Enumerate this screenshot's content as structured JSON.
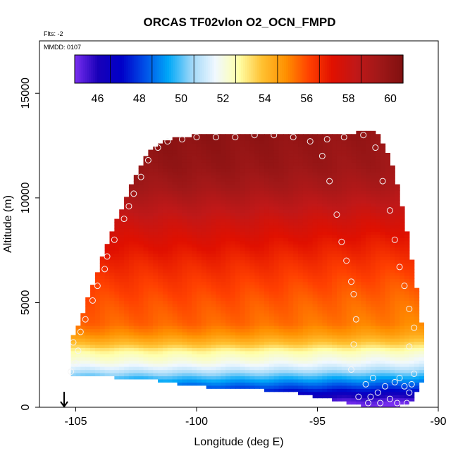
{
  "chart_data": {
    "type": "heatmap",
    "title": "ORCAS TF02vlon O2_OCN_FMPD",
    "annotations": {
      "flts": "Flts: -2",
      "mmdd": "MMDD: 0107"
    },
    "xlabel": "Longitude (deg E)",
    "ylabel": "Altitude (m)",
    "xlim": [
      -106.5,
      -90
    ],
    "ylim": [
      0,
      17500
    ],
    "x_ticks": [
      -105,
      -100,
      -95,
      -90
    ],
    "x_tick_labels": [
      "-105",
      "-100",
      "-95",
      "-90"
    ],
    "y_ticks": [
      0,
      5000,
      10000,
      15000
    ],
    "y_tick_labels": [
      "0",
      "5000",
      "10000",
      "15000"
    ],
    "colorbar": {
      "range": [
        44.3,
        60
      ],
      "ticks": [
        46,
        48,
        50,
        52,
        54,
        56,
        58,
        60
      ],
      "tick_labels": [
        "46",
        "48",
        "50",
        "52",
        "54",
        "56",
        "58",
        "60"
      ],
      "colors": [
        "#7a2ff0",
        "#1800b8",
        "#0000c8",
        "#0050e8",
        "#00a8f8",
        "#a0d8f8",
        "#f0f8ff",
        "#ffffa8",
        "#ffc030",
        "#ff9000",
        "#ff4000",
        "#e01000",
        "#c01818",
        "#a01818",
        "#801010"
      ]
    },
    "envelope": [
      [
        -105.2,
        1500,
        3200
      ],
      [
        -104.8,
        1500,
        4200
      ],
      [
        -104.4,
        1500,
        5500
      ],
      [
        -104.0,
        1500,
        6800
      ],
      [
        -103.6,
        1500,
        8200
      ],
      [
        -103.2,
        1300,
        9200
      ],
      [
        -102.8,
        1300,
        10300
      ],
      [
        -102.4,
        1300,
        11400
      ],
      [
        -102.0,
        1300,
        12200
      ],
      [
        -101.6,
        1300,
        12600
      ],
      [
        -101.2,
        1200,
        12800
      ],
      [
        -100.0,
        1000,
        13000
      ],
      [
        -98.0,
        900,
        13000
      ],
      [
        -96.0,
        700,
        13000
      ],
      [
        -94.0,
        300,
        13000
      ],
      [
        -93.0,
        0,
        13200
      ],
      [
        -92.6,
        0,
        13200
      ],
      [
        -92.2,
        0,
        12400
      ],
      [
        -91.8,
        0,
        11200
      ],
      [
        -91.4,
        100,
        9000
      ],
      [
        -91.0,
        400,
        6500
      ],
      [
        -90.6,
        1500,
        3200
      ]
    ],
    "altitude_profile": [
      [
        0,
        44.5
      ],
      [
        300,
        45.0
      ],
      [
        600,
        46.0
      ],
      [
        900,
        47.5
      ],
      [
        1200,
        48.5
      ],
      [
        1500,
        49.5
      ],
      [
        1800,
        50.5
      ],
      [
        2100,
        51.3
      ],
      [
        2400,
        51.8
      ],
      [
        2700,
        52.3
      ],
      [
        3000,
        53.3
      ],
      [
        3500,
        54.4
      ],
      [
        4000,
        55.0
      ],
      [
        5000,
        55.3
      ],
      [
        6000,
        55.7
      ],
      [
        7000,
        56.2
      ],
      [
        8000,
        56.8
      ],
      [
        9000,
        57.5
      ],
      [
        9800,
        58.2
      ],
      [
        10500,
        58.8
      ],
      [
        11500,
        59.3
      ],
      [
        13200,
        59.6
      ]
    ],
    "points": [
      [
        -105.2,
        1700
      ],
      [
        -105.0,
        2100
      ],
      [
        -104.9,
        2700
      ],
      [
        -105.1,
        3100
      ],
      [
        -104.8,
        3600
      ],
      [
        -104.6,
        4200
      ],
      [
        -104.3,
        5100
      ],
      [
        -104.1,
        5800
      ],
      [
        -103.8,
        6600
      ],
      [
        -103.7,
        7200
      ],
      [
        -103.4,
        8000
      ],
      [
        -103.0,
        9000
      ],
      [
        -102.8,
        9600
      ],
      [
        -102.6,
        10200
      ],
      [
        -102.3,
        11000
      ],
      [
        -102.0,
        11800
      ],
      [
        -101.6,
        12400
      ],
      [
        -101.2,
        12700
      ],
      [
        -100.6,
        12800
      ],
      [
        -100.0,
        12900
      ],
      [
        -99.2,
        12900
      ],
      [
        -98.4,
        12900
      ],
      [
        -97.6,
        13000
      ],
      [
        -96.8,
        13000
      ],
      [
        -96.0,
        12900
      ],
      [
        -95.3,
        12700
      ],
      [
        -94.8,
        12000
      ],
      [
        -94.5,
        10800
      ],
      [
        -94.2,
        9200
      ],
      [
        -94.0,
        7900
      ],
      [
        -93.8,
        7000
      ],
      [
        -93.6,
        6000
      ],
      [
        -93.5,
        5400
      ],
      [
        -93.4,
        4200
      ],
      [
        -93.5,
        3000
      ],
      [
        -93.6,
        1800
      ],
      [
        -93.0,
        1100
      ],
      [
        -92.7,
        1400
      ],
      [
        -92.5,
        700
      ],
      [
        -92.2,
        1000
      ],
      [
        -92.0,
        400
      ],
      [
        -91.8,
        1200
      ],
      [
        -91.6,
        1400
      ],
      [
        -91.4,
        1000
      ],
      [
        -91.2,
        700
      ],
      [
        -91.0,
        1600
      ],
      [
        -91.2,
        2900
      ],
      [
        -91.0,
        3800
      ],
      [
        -91.2,
        4700
      ],
      [
        -91.4,
        5800
      ],
      [
        -91.6,
        6700
      ],
      [
        -91.8,
        8000
      ],
      [
        -92.0,
        9400
      ],
      [
        -92.3,
        10800
      ],
      [
        -92.6,
        12400
      ],
      [
        -93.1,
        13000
      ],
      [
        -93.9,
        12900
      ],
      [
        -94.6,
        12800
      ],
      [
        -91.1,
        1100
      ],
      [
        -92.9,
        200
      ],
      [
        -92.4,
        200
      ],
      [
        -91.7,
        200
      ],
      [
        -91.3,
        200
      ],
      [
        -93.3,
        500
      ],
      [
        -92.8,
        500
      ]
    ]
  }
}
